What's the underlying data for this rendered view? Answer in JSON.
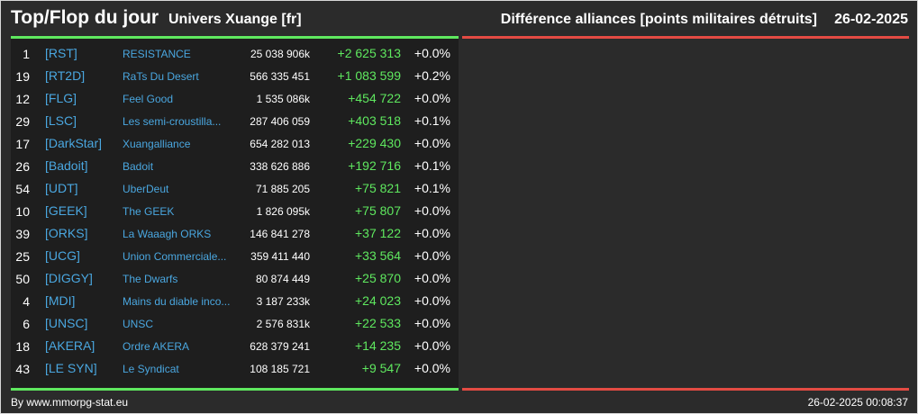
{
  "header": {
    "title": "Top/Flop du jour",
    "subtitle": "Univers Xuange [fr]",
    "right_title": "Différence alliances [points militaires détruits]",
    "date": "26-02-2025"
  },
  "colors": {
    "accent_green": "#5fe85f",
    "accent_red": "#e34b43",
    "link_blue": "#4aa7e0"
  },
  "rows": [
    {
      "rank": "1",
      "tag": "[RST]",
      "name": "RESISTANCE",
      "points": "25 038 906k",
      "diff": "+2 625 313",
      "pct": "+0.0%"
    },
    {
      "rank": "19",
      "tag": "[RT2D]",
      "name": "RaTs Du Desert",
      "points": "566 335 451",
      "diff": "+1 083 599",
      "pct": "+0.2%"
    },
    {
      "rank": "12",
      "tag": "[FLG]",
      "name": "Feel Good",
      "points": "1 535 086k",
      "diff": "+454 722",
      "pct": "+0.0%"
    },
    {
      "rank": "29",
      "tag": "[LSC]",
      "name": "Les semi-croustilla...",
      "points": "287 406 059",
      "diff": "+403 518",
      "pct": "+0.1%"
    },
    {
      "rank": "17",
      "tag": "[DarkStar]",
      "name": "Xuangalliance",
      "points": "654 282 013",
      "diff": "+229 430",
      "pct": "+0.0%"
    },
    {
      "rank": "26",
      "tag": "[Badoit]",
      "name": "Badoit",
      "points": "338 626 886",
      "diff": "+192 716",
      "pct": "+0.1%"
    },
    {
      "rank": "54",
      "tag": "[UDT]",
      "name": "UberDeut",
      "points": "71 885 205",
      "diff": "+75 821",
      "pct": "+0.1%"
    },
    {
      "rank": "10",
      "tag": "[GEEK]",
      "name": "The GEEK",
      "points": "1 826 095k",
      "diff": "+75 807",
      "pct": "+0.0%"
    },
    {
      "rank": "39",
      "tag": "[ORKS]",
      "name": "La Waaagh ORKS",
      "points": "146 841 278",
      "diff": "+37 122",
      "pct": "+0.0%"
    },
    {
      "rank": "25",
      "tag": "[UCG]",
      "name": "Union Commerciale...",
      "points": "359 411 440",
      "diff": "+33 564",
      "pct": "+0.0%"
    },
    {
      "rank": "50",
      "tag": "[DIGGY]",
      "name": "The Dwarfs",
      "points": "80 874 449",
      "diff": "+25 870",
      "pct": "+0.0%"
    },
    {
      "rank": "4",
      "tag": "[MDI]",
      "name": "Mains du diable inco...",
      "points": "3 187 233k",
      "diff": "+24 023",
      "pct": "+0.0%"
    },
    {
      "rank": "6",
      "tag": "[UNSC]",
      "name": "UNSC",
      "points": "2 576 831k",
      "diff": "+22 533",
      "pct": "+0.0%"
    },
    {
      "rank": "18",
      "tag": "[AKERA]",
      "name": "Ordre AKERA",
      "points": "628 379 241",
      "diff": "+14 235",
      "pct": "+0.0%"
    },
    {
      "rank": "43",
      "tag": "[LE SYN]",
      "name": "Le Syndicat",
      "points": "108 185 721",
      "diff": "+9 547",
      "pct": "+0.0%"
    }
  ],
  "footer": {
    "source": "By www.mmorpg-stat.eu",
    "timestamp": "26-02-2025 00:08:37"
  }
}
